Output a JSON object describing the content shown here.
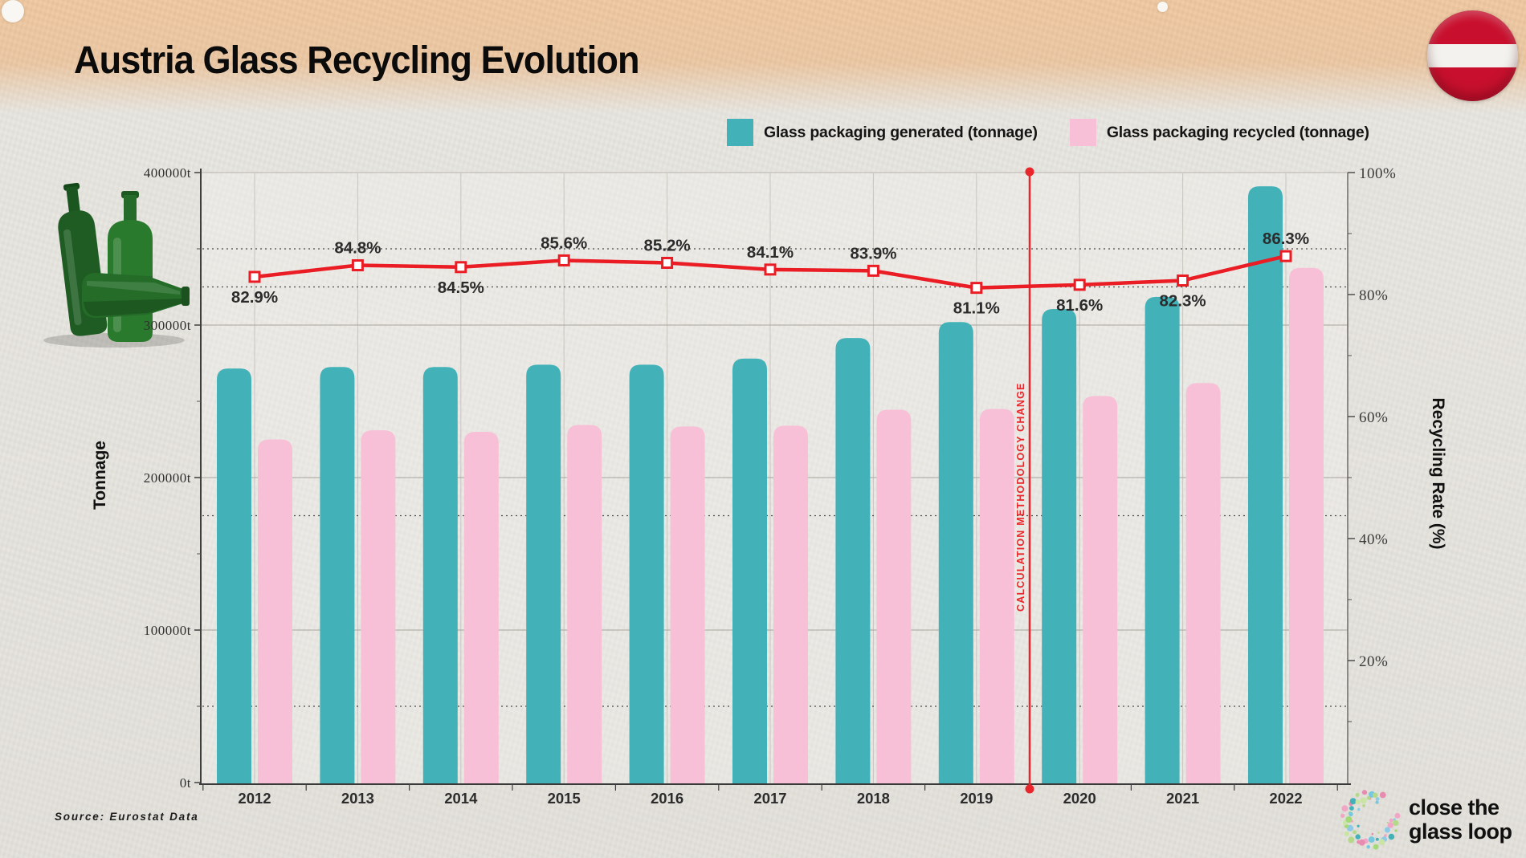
{
  "header": {
    "title": "Austria Glass Recycling Evolution"
  },
  "legend": [
    {
      "label": "Glass packaging generated (tonnage)",
      "color": "#43b2b8"
    },
    {
      "label": "Glass packaging recycled (tonnage)",
      "color": "#f8c0d7"
    }
  ],
  "chart_data": {
    "type": "bar",
    "title": "Austria Glass Recycling Evolution",
    "categories": [
      "2012",
      "2013",
      "2014",
      "2015",
      "2016",
      "2017",
      "2018",
      "2019",
      "2020",
      "2021",
      "2022"
    ],
    "series": [
      {
        "name": "Glass packaging generated (tonnage)",
        "type": "bar",
        "color": "#43b2b8",
        "values": [
          271500,
          272500,
          272500,
          274000,
          274000,
          278000,
          291500,
          302000,
          310500,
          318500,
          391000
        ]
      },
      {
        "name": "Glass packaging recycled (tonnage)",
        "type": "bar",
        "color": "#f8c0d7",
        "values": [
          225000,
          231000,
          230000,
          234500,
          233500,
          234000,
          244500,
          245000,
          253500,
          262000,
          337500
        ]
      },
      {
        "name": "Recycling rate",
        "type": "line",
        "color": "#ea1c24",
        "values": [
          82.9,
          84.8,
          84.5,
          85.6,
          85.2,
          84.1,
          83.9,
          81.1,
          81.6,
          82.3,
          86.3
        ],
        "labels": [
          "82.9%",
          "84.8%",
          "84.5%",
          "85.6%",
          "85.2%",
          "84.1%",
          "83.9%",
          "81.1%",
          "81.6%",
          "82.3%",
          "86.3%"
        ],
        "label_position": [
          "below",
          "above",
          "below",
          "above",
          "above",
          "above",
          "above",
          "below",
          "below",
          "below",
          "above"
        ]
      }
    ],
    "left_axis": {
      "label": "Tonnage",
      "max": 400000,
      "ticks": [
        "0t",
        "100000t",
        "200000t",
        "300000t",
        "400000t"
      ],
      "tick_values": [
        0,
        100000,
        200000,
        300000,
        400000
      ]
    },
    "right_axis": {
      "label": "Recycling Rate (%)",
      "max": 100,
      "ticks": [
        "20%",
        "40%",
        "60%",
        "80%",
        "100%"
      ],
      "tick_values": [
        20,
        40,
        60,
        80,
        100
      ]
    },
    "dotted_guides_pct": [
      12.5,
      43.75,
      81.25,
      87.5
    ],
    "annotation": {
      "text": "CALCULATION METHODOLOGY CHANGE",
      "between_years": [
        "2019",
        "2020"
      ],
      "color": "#e8262b"
    },
    "grid": "on",
    "legend_position": "top-right"
  },
  "source": {
    "text": "Source: Eurostat Data"
  },
  "logo": {
    "line1": "close the",
    "line2": "glass loop"
  }
}
